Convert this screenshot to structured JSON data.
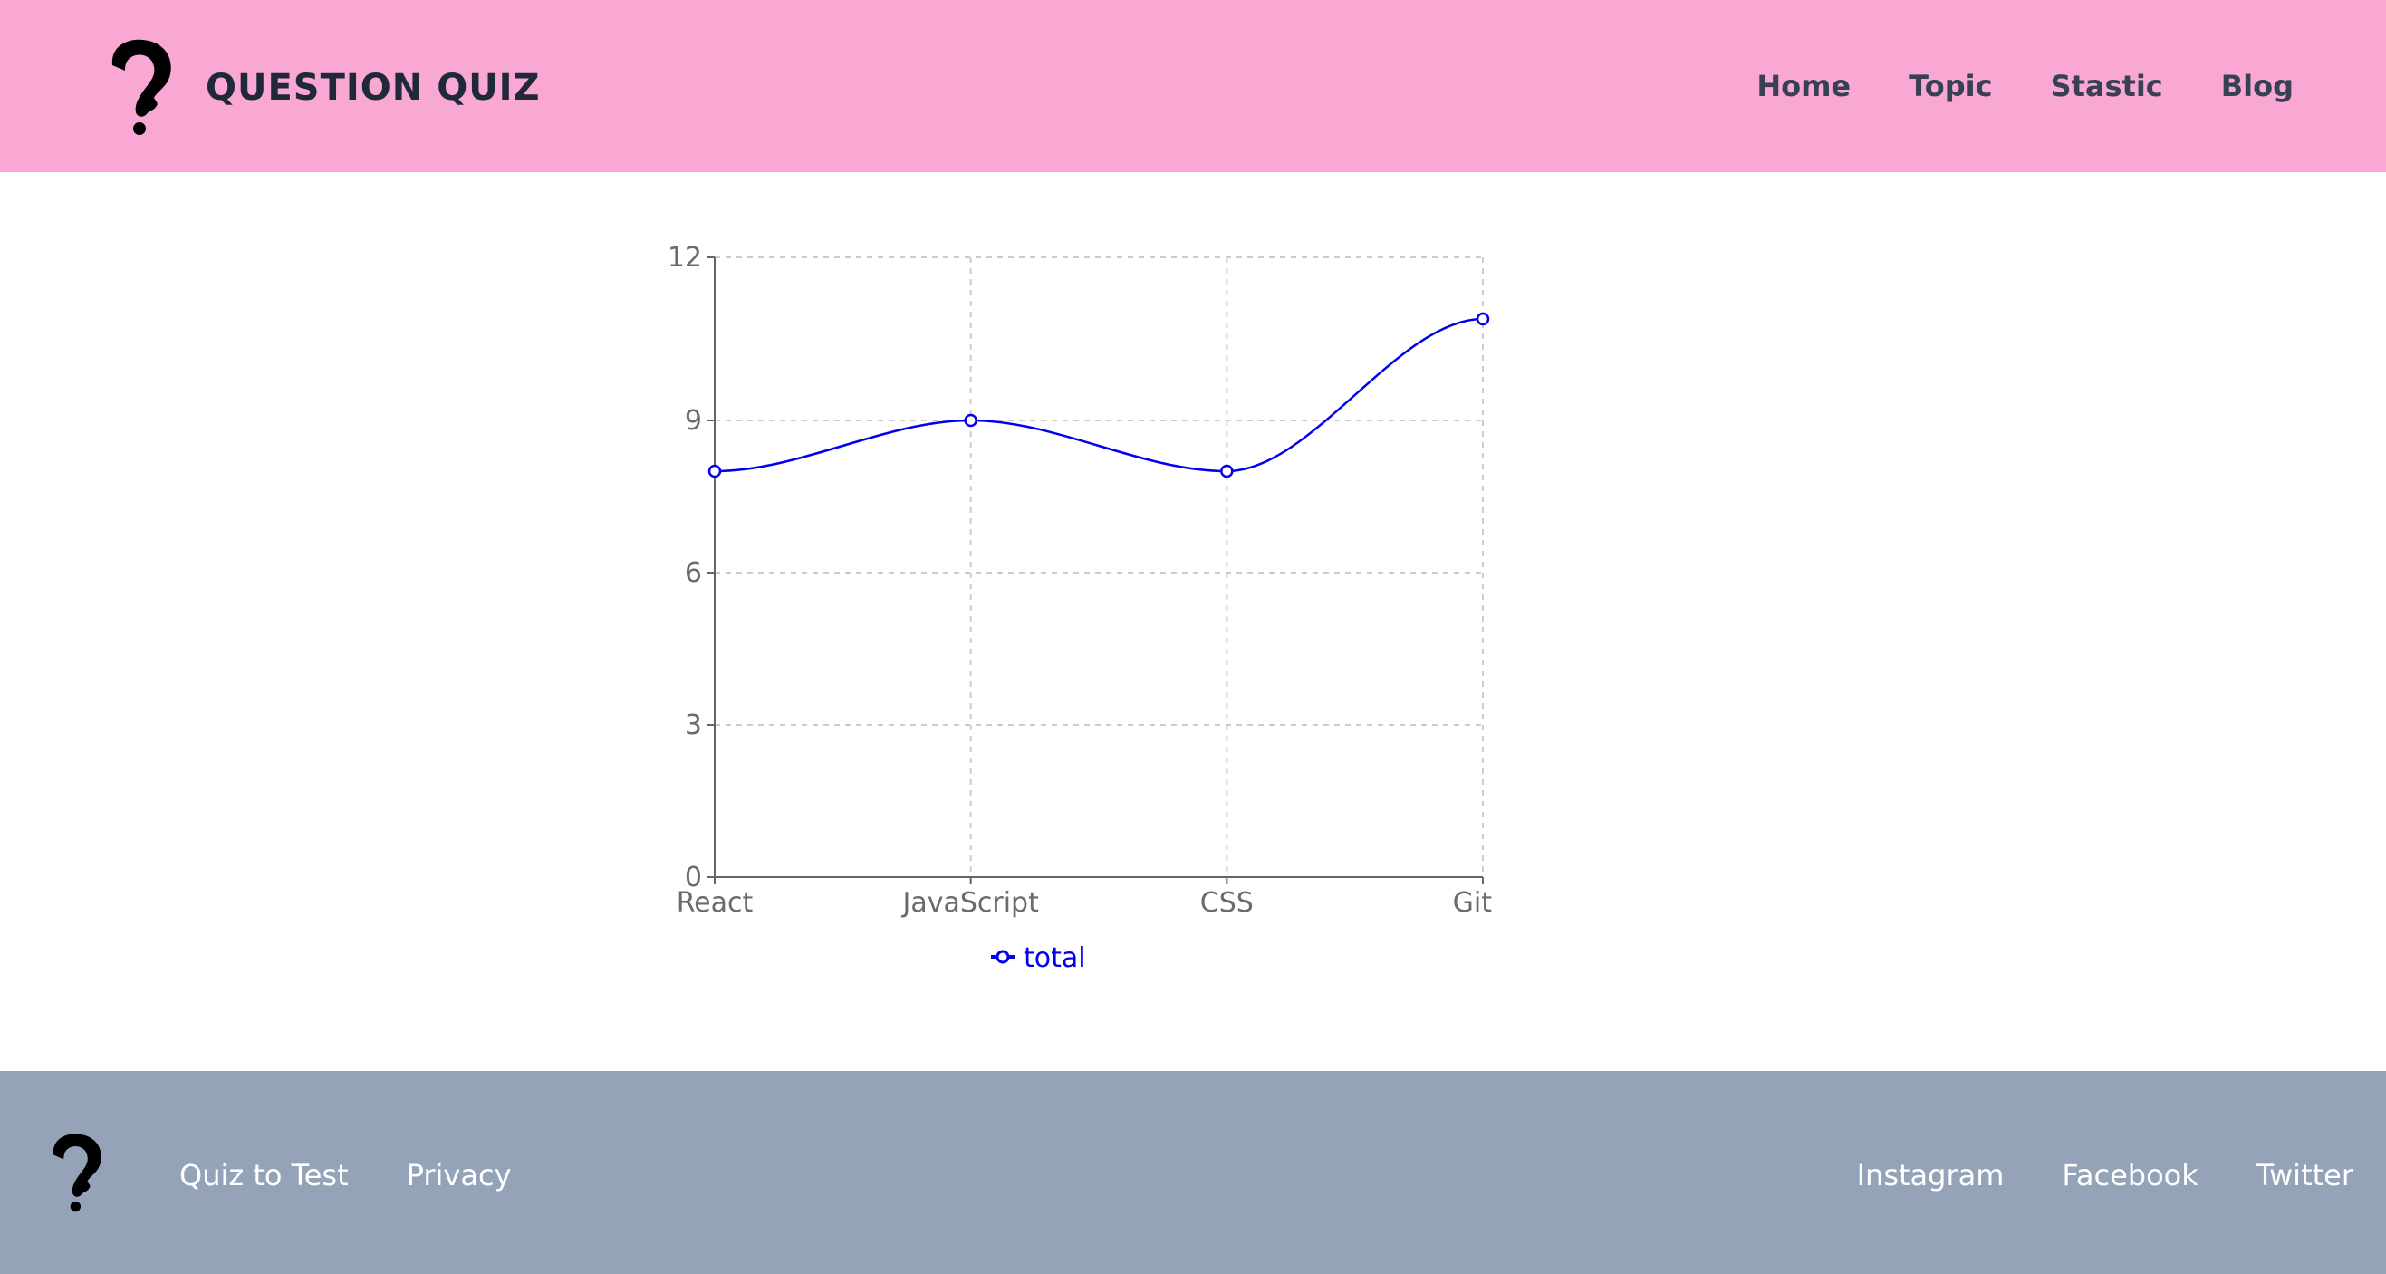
{
  "header": {
    "brand": "QUESTION QUIZ",
    "logo_icon": "question-mark-head-icon",
    "nav": [
      "Home",
      "Topic",
      "Stastic",
      "Blog"
    ]
  },
  "chart_data": {
    "type": "line",
    "categories": [
      "React",
      "JavaScript",
      "CSS",
      "Git"
    ],
    "series": [
      {
        "name": "total",
        "values": [
          8,
          9,
          8,
          11
        ],
        "color": "#0000ee"
      }
    ],
    "yticks": [
      "0",
      "3",
      "6",
      "9",
      "12"
    ],
    "ylim": [
      0,
      12
    ],
    "grid": true,
    "legend": "bottom",
    "xlabel": "",
    "ylabel": ""
  },
  "footer": {
    "logo_icon": "question-mark-head-icon",
    "left_links": [
      "Quiz to Test",
      "Privacy"
    ],
    "right_links": [
      "Instagram",
      "Facebook",
      "Twitter"
    ]
  },
  "colors": {
    "header_bg": "#f9a8d4",
    "footer_bg": "#94a3b8",
    "line": "#0000ee"
  }
}
